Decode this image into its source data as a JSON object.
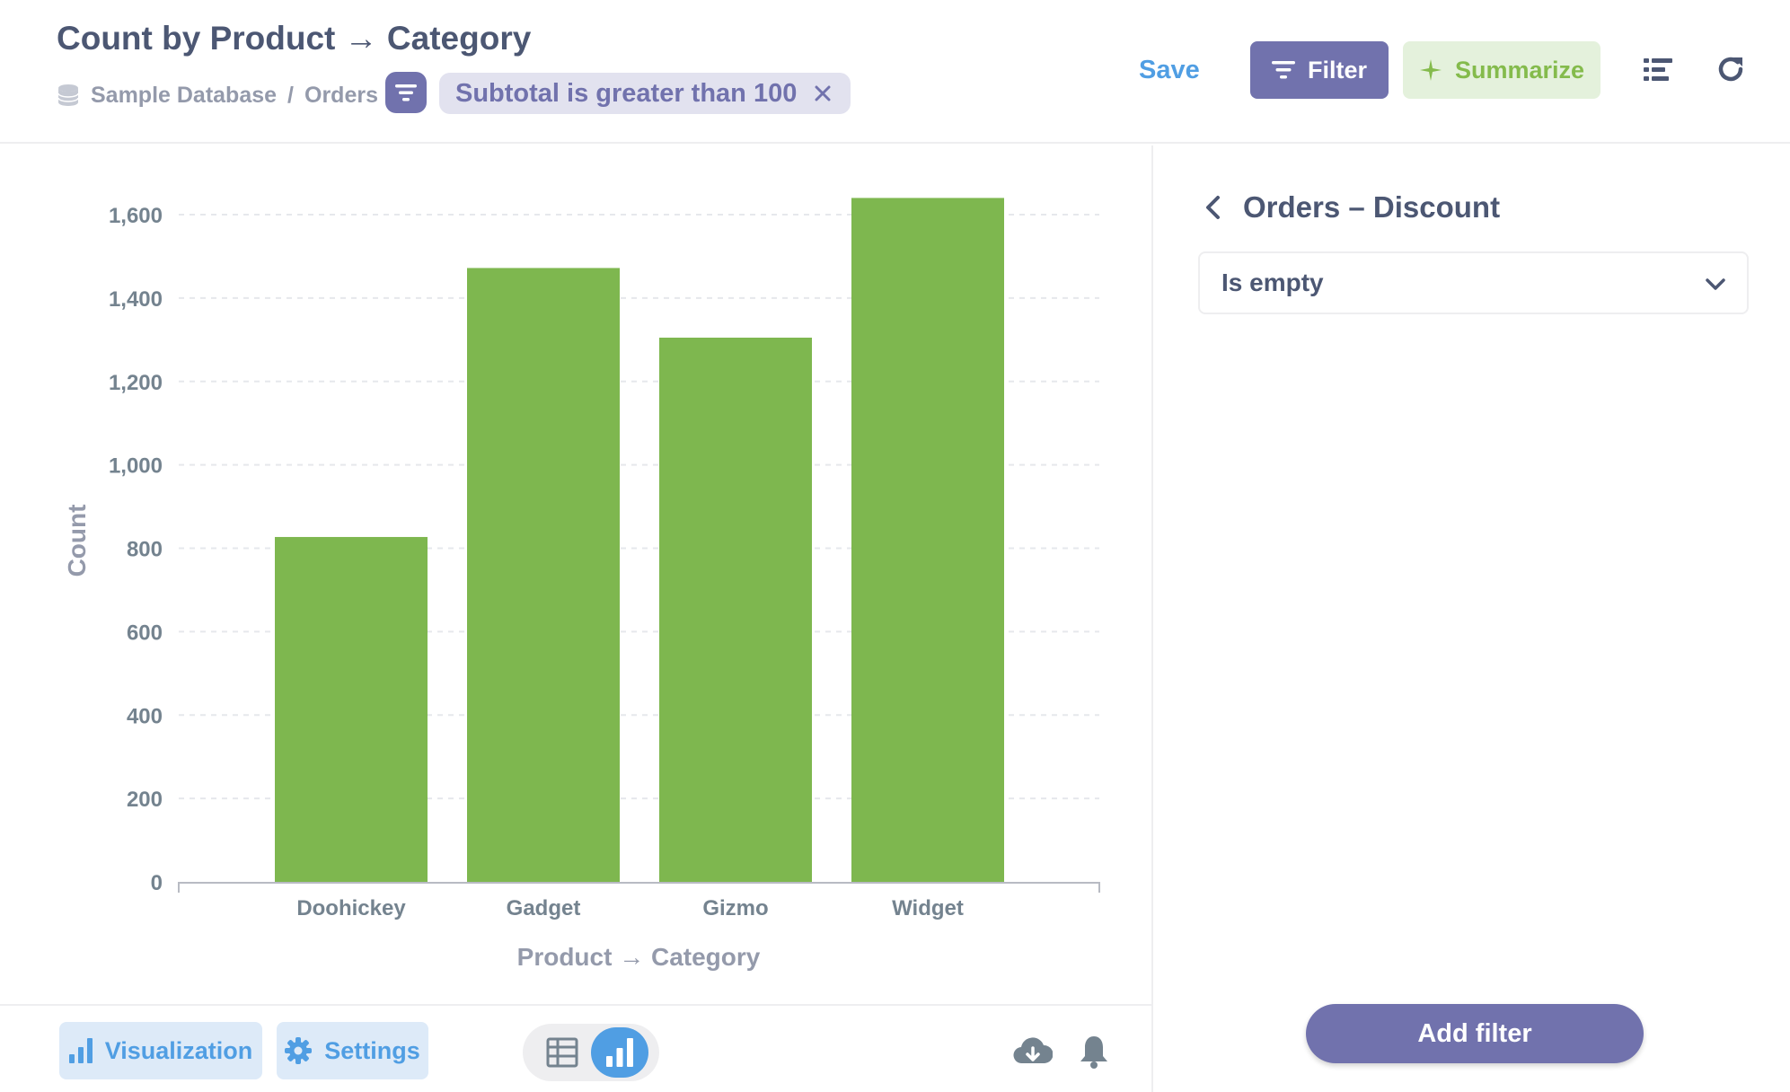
{
  "header": {
    "title": "Count by Product → Category",
    "breadcrumb": {
      "database": "Sample Database",
      "separator": "/",
      "table": "Orders"
    },
    "active_filter": "Subtotal is greater than 100",
    "save_label": "Save",
    "filter_label": "Filter",
    "summarize_label": "Summarize"
  },
  "sidebar": {
    "title": "Orders – Discount",
    "operator_selected": "Is empty",
    "add_filter_label": "Add filter"
  },
  "footer": {
    "visualization_label": "Visualization",
    "settings_label": "Settings"
  },
  "colors": {
    "brand": "#7172ad",
    "accent_blue": "#509ee3",
    "bar_green": "#7eb74f",
    "summarize_bg": "#e4f1dc",
    "summarize_text": "#84bb4c"
  },
  "chart_data": {
    "type": "bar",
    "categories": [
      "Doohickey",
      "Gadget",
      "Gizmo",
      "Widget"
    ],
    "values": [
      827,
      1472,
      1305,
      1640
    ],
    "xlabel": "Product → Category",
    "ylabel": "Count",
    "ylim": [
      0,
      1600
    ],
    "yticks": [
      "0",
      "200",
      "400",
      "600",
      "800",
      "1,000",
      "1,200",
      "1,400",
      "1,600"
    ],
    "grid": true,
    "legend": "none"
  }
}
